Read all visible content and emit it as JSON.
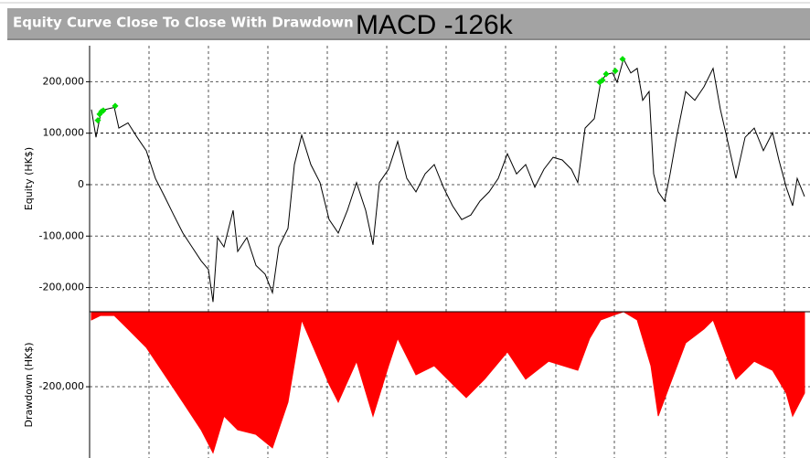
{
  "header": {
    "title": "Equity Curve Close To Close With Drawdown",
    "annotation": "MACD -126k"
  },
  "chart_data": [
    {
      "type": "line",
      "ylabel": "Equity (HK$)",
      "color": "#000000",
      "x": [
        0,
        5,
        10,
        15,
        25,
        30,
        40,
        50,
        60,
        70,
        80,
        90,
        100,
        110,
        120,
        128,
        133,
        138,
        145,
        155,
        160,
        170,
        180,
        190,
        198,
        205,
        215,
        222,
        230,
        240,
        250,
        260,
        270,
        280,
        290,
        300,
        308,
        315,
        325,
        335,
        345,
        355,
        365,
        375,
        385,
        395,
        405,
        415,
        425,
        435,
        445,
        455,
        465,
        475,
        485,
        495,
        505,
        515,
        525,
        532,
        540,
        550,
        557,
        563,
        570,
        575,
        582,
        590,
        597,
        603,
        610,
        615,
        620,
        627,
        633,
        640,
        650,
        660,
        670,
        680,
        688,
        695,
        705,
        715,
        725,
        735,
        745,
        752,
        760,
        767,
        772,
        780
      ],
      "values": [
        146000,
        92000,
        137000,
        146000,
        150000,
        110000,
        120000,
        92000,
        66000,
        12000,
        -23000,
        -59000,
        -94000,
        -121000,
        -148000,
        -165000,
        -228000,
        -103000,
        -121000,
        -50000,
        -130000,
        -103000,
        -157000,
        -174000,
        -210000,
        -121000,
        -85000,
        39000,
        96000,
        39000,
        4000,
        -68000,
        -94000,
        -50000,
        4000,
        -50000,
        -117000,
        4000,
        30000,
        84000,
        12000,
        -14000,
        21000,
        39000,
        -5000,
        -41000,
        -68000,
        -59000,
        -32000,
        -14000,
        12000,
        60000,
        21000,
        39000,
        -5000,
        30000,
        53000,
        48000,
        30000,
        4000,
        110000,
        128000,
        199000,
        214000,
        217000,
        199000,
        244000,
        217000,
        226000,
        164000,
        181000,
        21000,
        -14000,
        -32000,
        21000,
        92000,
        181000,
        164000,
        190000,
        226000,
        146000,
        92000,
        12000,
        92000,
        110000,
        66000,
        101000,
        48000,
        -5000,
        -41000,
        12000,
        -23000
      ],
      "highs": {
        "color": "#00e000",
        "x": [
          7,
          9,
          11,
          13,
          26,
          556,
          559,
          563,
          573,
          581
        ],
        "values": [
          125000,
          137000,
          142000,
          144000,
          153000,
          199000,
          203000,
          215000,
          221000,
          244000
        ]
      },
      "xlim": [
        -2,
        786
      ],
      "ylim": [
        -247000,
        270000
      ],
      "yticks": [
        {
          "value": -200000,
          "label": "-200,000"
        },
        {
          "value": -100000,
          "label": "-100,000"
        },
        0,
        {
          "value": 100000,
          "label": "100,000"
        },
        {
          "value": 200000,
          "label": "200,000"
        }
      ],
      "grid": true
    },
    {
      "type": "area",
      "ylabel": "Drawdown (HK$)",
      "color": "#ff0000",
      "x": [
        0,
        10,
        25,
        40,
        60,
        80,
        100,
        120,
        133,
        145,
        160,
        180,
        198,
        215,
        230,
        245,
        260,
        270,
        290,
        308,
        325,
        335,
        355,
        375,
        395,
        410,
        430,
        455,
        475,
        500,
        532,
        545,
        557,
        570,
        582,
        597,
        612,
        620,
        633,
        650,
        670,
        680,
        695,
        705,
        725,
        745,
        760,
        767,
        780
      ],
      "values": [
        -22000,
        -10000,
        -10000,
        -46000,
        -95000,
        -168000,
        -241000,
        -315000,
        -376000,
        -278000,
        -315000,
        -327000,
        -363000,
        -241000,
        -22000,
        -107000,
        -193000,
        -241000,
        -132000,
        -278000,
        -144000,
        -71000,
        -168000,
        -144000,
        -193000,
        -229000,
        -180000,
        -107000,
        -180000,
        -132000,
        -156000,
        -71000,
        -22000,
        -10000,
        0,
        -22000,
        -144000,
        -278000,
        -193000,
        -83000,
        -46000,
        -22000,
        -120000,
        -180000,
        -132000,
        -156000,
        -217000,
        -278000,
        -217000
      ],
      "xlim": [
        -2,
        786
      ],
      "ylim": [
        -390000,
        0
      ],
      "yticks": [
        {
          "value": -200000,
          "label": "-200,000"
        }
      ],
      "grid": true
    }
  ]
}
